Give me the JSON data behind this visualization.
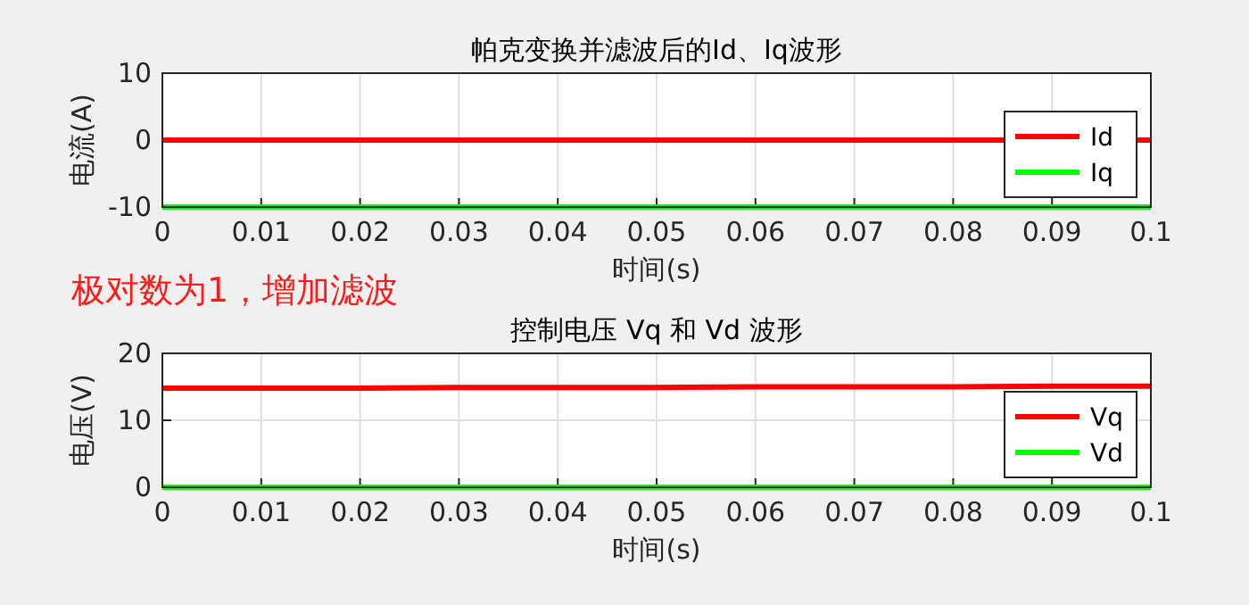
{
  "chart_data": [
    {
      "type": "line",
      "title": "帕克变换并滤波后的Id、Iq波形",
      "xlabel": "时间(s)",
      "ylabel": "电流(A)",
      "annotations": [
        "极对数为1，增加滤波"
      ],
      "xlim": [
        0,
        0.1
      ],
      "xticks": [
        0,
        0.01,
        0.02,
        0.03,
        0.04,
        0.05,
        0.06,
        0.07,
        0.08,
        0.09,
        0.1
      ],
      "ylim": [
        -10,
        10
      ],
      "yticks": [
        -10,
        0,
        10
      ],
      "grid": true,
      "legend": "right",
      "line_style": "solid",
      "marker": "none",
      "series": [
        {
          "name": "Id",
          "color": "#ff0000",
          "x": [
            0,
            0.01,
            0.02,
            0.03,
            0.04,
            0.05,
            0.06,
            0.07,
            0.08,
            0.09,
            0.1
          ],
          "values": [
            0,
            0,
            0,
            0,
            0,
            0,
            0,
            0,
            0,
            0,
            0
          ]
        },
        {
          "name": "Iq",
          "color": "#00ff00",
          "x": [
            0,
            0.01,
            0.02,
            0.03,
            0.04,
            0.05,
            0.06,
            0.07,
            0.08,
            0.09,
            0.1
          ],
          "values": [
            -10,
            -10,
            -10,
            -10,
            -10,
            -10,
            -10,
            -10,
            -10,
            -10,
            -10
          ]
        }
      ]
    },
    {
      "type": "line",
      "title": "控制电压 Vq 和 Vd 波形",
      "xlabel": "时间(s)",
      "ylabel": "电压(V)",
      "xlim": [
        0,
        0.1
      ],
      "xticks": [
        0,
        0.01,
        0.02,
        0.03,
        0.04,
        0.05,
        0.06,
        0.07,
        0.08,
        0.09,
        0.1
      ],
      "ylim": [
        0,
        20
      ],
      "yticks": [
        0,
        10,
        20
      ],
      "grid": true,
      "legend": "right",
      "line_style": "solid",
      "marker": "none",
      "series": [
        {
          "name": "Vq",
          "color": "#ff0000",
          "x": [
            0,
            0.01,
            0.02,
            0.03,
            0.04,
            0.05,
            0.06,
            0.07,
            0.08,
            0.09,
            0.1
          ],
          "values": [
            14.8,
            14.8,
            14.8,
            14.9,
            14.9,
            14.9,
            15,
            15,
            15,
            15.1,
            15.1
          ]
        },
        {
          "name": "Vd",
          "color": "#00ff00",
          "x": [
            0,
            0.01,
            0.02,
            0.03,
            0.04,
            0.05,
            0.06,
            0.07,
            0.08,
            0.09,
            0.1
          ],
          "values": [
            0,
            0,
            0,
            0,
            0,
            0,
            0,
            0,
            0,
            0,
            0
          ]
        }
      ]
    }
  ]
}
